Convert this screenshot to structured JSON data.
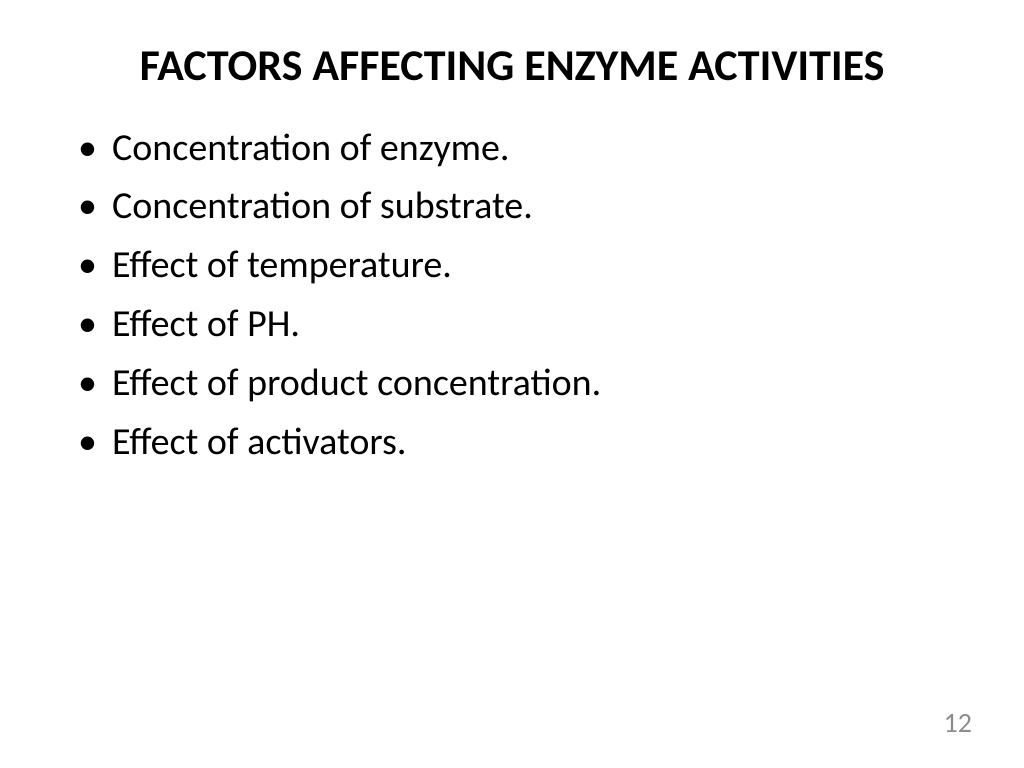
{
  "slide": {
    "title": "FACTORS AFFECTING ENZYME ACTIVITIES",
    "title_fontsize": 44,
    "title_fontweight": 700,
    "bullets": [
      "Concentration of enzyme.",
      "Concentration of substrate.",
      "Effect of temperature.",
      "Effect of PH.",
      "Effect of product concentration.",
      "Effect of activators."
    ],
    "bullet_fontsize": 38,
    "page_number": "12",
    "page_number_color": "#8c8c8c",
    "background_color": "#ffffff",
    "text_color": "#000000",
    "font_family": "Calibri"
  }
}
